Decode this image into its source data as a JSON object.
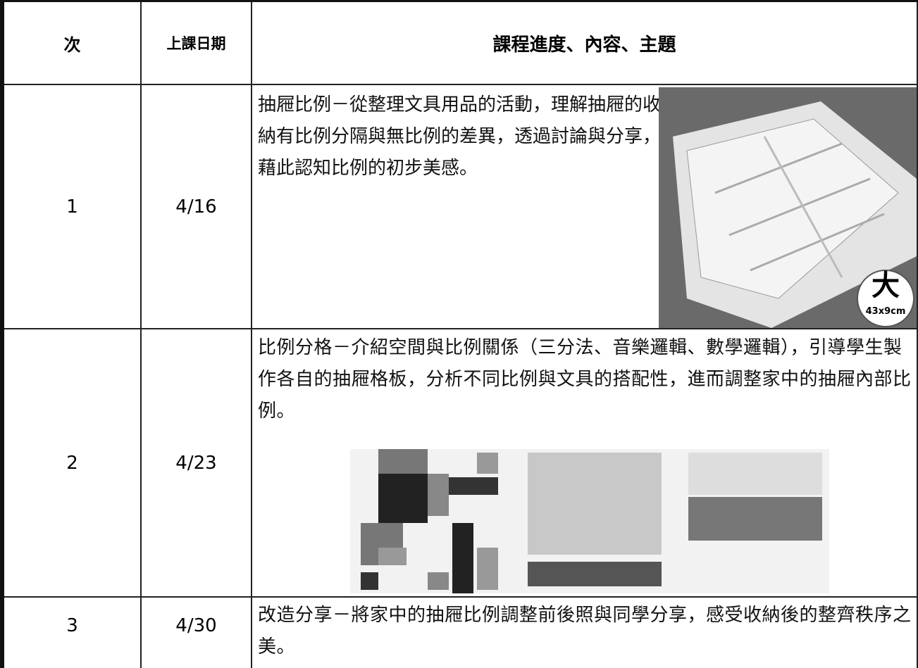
{
  "table": {
    "header": [
      "次",
      "上課日期",
      "課程進度、內容、主題"
    ],
    "rows": [
      [
        "1",
        "4/16",
        "抽屜比例－從整理文具用品的活動，理解抽屜的收納有比例分隔與無比例的差異，透過討論與分享，藉此認知比例的初步美感。"
      ],
      [
        "2",
        "4/23",
        "比例分格－介紹空間與比例關係（三分法、音樂邏輯、數學邏輯），引導學生製作各自的抽屜格板，分析不同比例與文具的搭配性，進而調整家中的抽屜內部比例。"
      ],
      [
        "3",
        "4/30",
        "改造分享－將家中的抽屜比例調整前後照與同學分享，感受收納後的整齊秩序之美。"
      ]
    ]
  },
  "photo": {
    "badge": "大",
    "size": "43x9cm"
  }
}
